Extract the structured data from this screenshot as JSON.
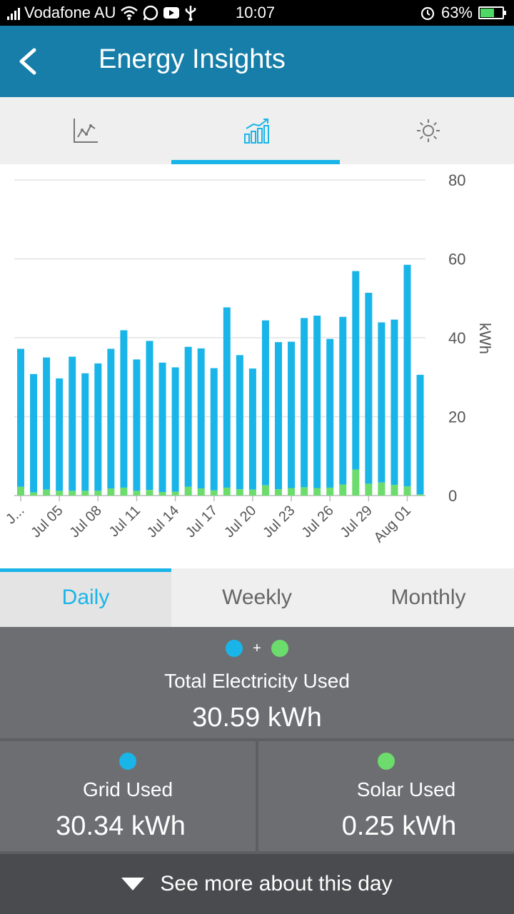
{
  "status": {
    "carrier": "Vodafone AU",
    "time": "10:07",
    "battery": "63%",
    "battery_level": 0.63
  },
  "header": {
    "title": "Energy Insights"
  },
  "icon_tabs": [
    {
      "icon": "line-chart-icon",
      "active": false
    },
    {
      "icon": "bar-chart-icon",
      "active": true
    },
    {
      "icon": "sun-icon",
      "active": false
    }
  ],
  "chart_data": {
    "type": "bar",
    "stacked": true,
    "ylabel": "kWh",
    "ylim": [
      0,
      80
    ],
    "yticks": [
      "0",
      "20",
      "40",
      "60",
      "80"
    ],
    "tick_labels": [
      "J...",
      "Jul 05",
      "Jul 08",
      "Jul 11",
      "Jul 14",
      "Jul 17",
      "Jul 20",
      "Jul 23",
      "Jul 26",
      "Jul 29",
      "Aug 01"
    ],
    "series_colors": {
      "grid": "#1ab5e8",
      "solar": "#6cdc6c"
    },
    "grid": [
      35,
      30,
      33.5,
      28.5,
      34,
      29.8,
      32.3,
      35.4,
      39.9,
      33.3,
      37.8,
      32.8,
      31.5,
      35.5,
      35.5,
      31,
      45.7,
      34,
      30.7,
      41.8,
      37.3,
      37.1,
      42.9,
      43.7,
      37.7,
      42.5,
      50.3,
      48.4,
      40.6,
      41.9,
      56.2,
      30.3
    ],
    "solar": [
      2.2,
      0.8,
      1.5,
      1.2,
      1.2,
      1.2,
      1.2,
      1.8,
      2,
      1.2,
      1.4,
      0.9,
      1,
      2.2,
      1.8,
      1.3,
      2,
      1.6,
      1.5,
      2.6,
      1.6,
      1.9,
      2.1,
      1.9,
      2,
      2.8,
      6.6,
      3,
      3.3,
      2.7,
      2.3,
      0.3
    ]
  },
  "period_tabs": [
    {
      "label": "Daily",
      "active": true
    },
    {
      "label": "Weekly",
      "active": false
    },
    {
      "label": "Monthly",
      "active": false
    }
  ],
  "summary": {
    "plus": "+",
    "total_label": "Total Electricity Used",
    "total_value": "30.59 kWh",
    "grid_label": "Grid Used",
    "grid_value": "30.34 kWh",
    "solar_label": "Solar Used",
    "solar_value": "0.25 kWh",
    "more_label": "See more about this day"
  }
}
